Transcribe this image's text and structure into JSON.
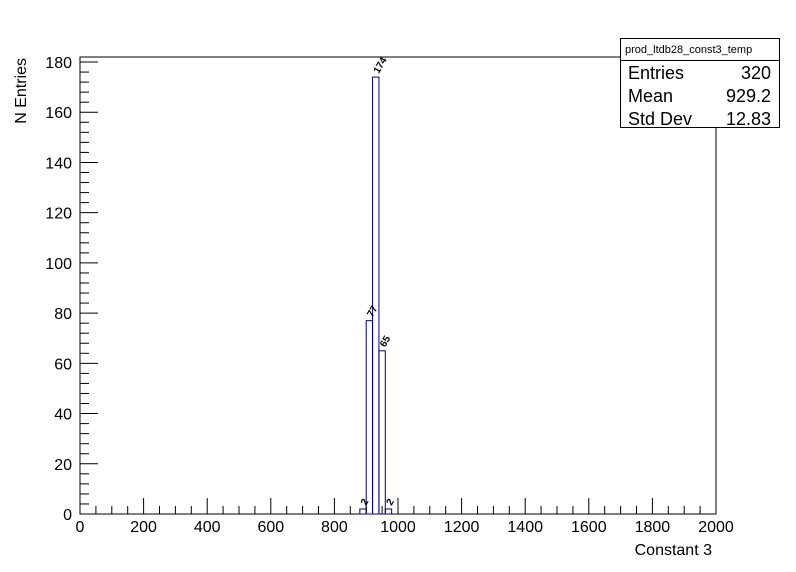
{
  "chart_data": {
    "type": "bar",
    "xlabel": "Constant 3",
    "ylabel": "N Entries",
    "xlim": [
      0,
      2000
    ],
    "ylim": [
      0,
      182
    ],
    "x_ticks": [
      0,
      200,
      400,
      600,
      800,
      1000,
      1200,
      1400,
      1600,
      1800,
      2000
    ],
    "y_ticks": [
      0,
      20,
      40,
      60,
      80,
      100,
      120,
      140,
      160,
      180
    ],
    "bins": [
      {
        "x0": 880,
        "x1": 900,
        "value": 2
      },
      {
        "x0": 900,
        "x1": 920,
        "value": 77
      },
      {
        "x0": 920,
        "x1": 940,
        "value": 174
      },
      {
        "x0": 940,
        "x1": 960,
        "value": 65
      },
      {
        "x0": 960,
        "x1": 980,
        "value": 2
      }
    ],
    "line_color": "#000080",
    "grid": false
  },
  "stats": {
    "title": "prod_ltdb28_const3_temp",
    "rows": [
      {
        "label": "Entries",
        "value": "320"
      },
      {
        "label": "Mean",
        "value": "929.2"
      },
      {
        "label": "Std Dev",
        "value": "12.83"
      }
    ]
  }
}
